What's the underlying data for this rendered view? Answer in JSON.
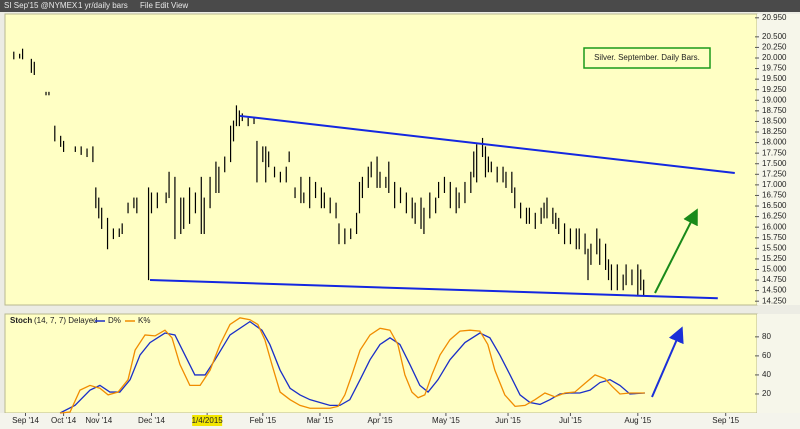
{
  "toolbar": {
    "symbol": "SI Sep'15 @NYMEX",
    "period": "1 yr/daily bars",
    "menu": [
      "File",
      "Edit",
      "View"
    ]
  },
  "chart_data": [
    {
      "type": "hilo",
      "annotation": "Silver. September. Daily Bars.",
      "color": "#000000",
      "xlim": [
        0,
        256
      ],
      "ylim": [
        14.16,
        21.04
      ],
      "xticks": [
        {
          "value": 7,
          "label": "Sep '14"
        },
        {
          "value": 20,
          "label": "Oct '14"
        },
        {
          "value": 32,
          "label": "Nov '14"
        },
        {
          "value": 50,
          "label": "Dec '14"
        },
        {
          "value": 69,
          "label": "1/4/2015",
          "highlight": "#f2e600"
        },
        {
          "value": 88,
          "label": "Feb '15"
        },
        {
          "value": 107.5,
          "label": "Mar '15"
        },
        {
          "value": 128,
          "label": "Apr '15"
        },
        {
          "value": 150.5,
          "label": "May '15"
        },
        {
          "value": 171.7,
          "label": "Jun '15"
        },
        {
          "value": 193,
          "label": "Jul '15"
        },
        {
          "value": 216,
          "label": "Aug '15"
        },
        {
          "value": 246,
          "label": "Sep '15"
        }
      ],
      "yticks": [
        {
          "value": 20.95,
          "label": "20.950"
        },
        {
          "value": 20.5,
          "label": "20.500"
        },
        {
          "value": 20.25,
          "label": "20.250"
        },
        {
          "value": 20,
          "label": "20.000"
        },
        {
          "value": 19.75,
          "label": "19.750"
        },
        {
          "value": 19.5,
          "label": "19.500"
        },
        {
          "value": 19.25,
          "label": "19.250"
        },
        {
          "value": 19,
          "label": "19.000"
        },
        {
          "value": 18.75,
          "label": "18.750"
        },
        {
          "value": 18.5,
          "label": "18.500"
        },
        {
          "value": 18.25,
          "label": "18.250"
        },
        {
          "value": 18,
          "label": "18.000"
        },
        {
          "value": 17.75,
          "label": "17.750"
        },
        {
          "value": 17.5,
          "label": "17.500"
        },
        {
          "value": 17.25,
          "label": "17.250"
        },
        {
          "value": 17,
          "label": "17.000"
        },
        {
          "value": 16.75,
          "label": "16.750"
        },
        {
          "value": 16.5,
          "label": "16.500"
        },
        {
          "value": 16.25,
          "label": "16.250"
        },
        {
          "value": 16,
          "label": "16.000"
        },
        {
          "value": 15.75,
          "label": "15.750"
        },
        {
          "value": 15.5,
          "label": "15.500"
        },
        {
          "value": 15.25,
          "label": "15.250"
        },
        {
          "value": 15,
          "label": "15.000"
        },
        {
          "value": 14.75,
          "label": "14.750"
        },
        {
          "value": 14.5,
          "label": "14.500"
        },
        {
          "value": 14.25,
          "label": "14.250"
        }
      ],
      "x": [
        3,
        5,
        6,
        9,
        10,
        14,
        15,
        17,
        19,
        20,
        24,
        26,
        28,
        30,
        31,
        32,
        33,
        35,
        37,
        39,
        40,
        42,
        44,
        45,
        49,
        50,
        52,
        55,
        56,
        58,
        60,
        61,
        63,
        65,
        67,
        68,
        70,
        72,
        73,
        75,
        77,
        78,
        79,
        80,
        81,
        83,
        85,
        86,
        88,
        89,
        90,
        92,
        94,
        96,
        97,
        99,
        101,
        102,
        104,
        106,
        108,
        109,
        111,
        113,
        114,
        116,
        118,
        120,
        121,
        122,
        124,
        125,
        127,
        128,
        130,
        131,
        133,
        135,
        137,
        139,
        140,
        142,
        143,
        145,
        147,
        148,
        150,
        152,
        154,
        155,
        157,
        159,
        160,
        161,
        163,
        164,
        165,
        166,
        168,
        170,
        171,
        173,
        174,
        176,
        178,
        179,
        181,
        183,
        184,
        185,
        187,
        188,
        189,
        191,
        193,
        195,
        196,
        198,
        199,
        200,
        202,
        203,
        205,
        206,
        207,
        209,
        211,
        212,
        214,
        216,
        217,
        218
      ],
      "high": [
        20.15,
        20.1,
        20.22,
        19.98,
        19.91,
        19.2,
        19.2,
        18.4,
        18.16,
        18.04,
        17.91,
        17.91,
        17.86,
        17.91,
        16.94,
        16.7,
        16.46,
        16.22,
        15.97,
        15.97,
        16.09,
        16.58,
        16.7,
        16.7,
        16.94,
        16.82,
        16.82,
        16.82,
        17.31,
        17.19,
        16.7,
        16.7,
        16.94,
        16.82,
        17.19,
        16.7,
        17.19,
        17.55,
        17.43,
        17.67,
        18.4,
        18.52,
        18.88,
        18.76,
        18.69,
        18.59,
        18.59,
        18.04,
        17.91,
        17.91,
        17.79,
        17.43,
        17.31,
        17.43,
        17.79,
        16.94,
        17.19,
        16.82,
        17.19,
        17.07,
        16.94,
        16.82,
        16.7,
        16.58,
        16.09,
        15.97,
        15.97,
        16.34,
        17.07,
        17.19,
        17.43,
        17.55,
        17.67,
        17.31,
        17.19,
        17.55,
        17.07,
        16.94,
        16.82,
        16.7,
        16.58,
        16.7,
        16.46,
        16.82,
        16.7,
        17.07,
        17.19,
        17.07,
        16.94,
        16.82,
        17.07,
        17.31,
        17.79,
        17.96,
        18.11,
        17.91,
        17.67,
        17.55,
        17.43,
        17.43,
        17.31,
        17.31,
        16.94,
        16.58,
        16.46,
        16.46,
        16.34,
        16.46,
        16.58,
        16.7,
        16.46,
        16.34,
        16.22,
        16.09,
        15.97,
        15.97,
        15.97,
        15.85,
        15.49,
        15.61,
        15.97,
        15.73,
        15.61,
        15.24,
        15.12,
        15.12,
        14.88,
        15.12,
        15.0,
        15.12,
        15.0,
        14.76
      ],
      "low": [
        19.98,
        20.0,
        19.98,
        19.66,
        19.61,
        19.13,
        19.13,
        18.04,
        17.91,
        17.79,
        17.79,
        17.72,
        17.67,
        17.55,
        16.46,
        16.22,
        15.97,
        15.49,
        15.73,
        15.78,
        15.85,
        16.34,
        16.46,
        16.34,
        14.76,
        16.34,
        16.46,
        16.58,
        16.7,
        15.73,
        15.85,
        15.97,
        16.09,
        16.34,
        15.85,
        15.85,
        16.46,
        16.82,
        16.82,
        17.31,
        17.55,
        18.04,
        18.4,
        18.4,
        18.52,
        18.4,
        18.45,
        17.07,
        17.55,
        17.07,
        17.43,
        17.19,
        17.07,
        17.07,
        17.55,
        16.7,
        16.58,
        16.58,
        16.46,
        16.7,
        16.46,
        16.46,
        16.34,
        16.22,
        15.61,
        15.61,
        15.73,
        15.85,
        16.34,
        16.7,
        16.94,
        17.19,
        16.94,
        16.94,
        16.94,
        16.82,
        16.46,
        16.58,
        16.34,
        16.22,
        16.09,
        15.97,
        15.85,
        16.22,
        16.34,
        16.7,
        16.82,
        16.46,
        16.34,
        16.46,
        16.58,
        16.82,
        17.19,
        17.07,
        17.67,
        17.19,
        17.31,
        17.31,
        17.07,
        17.07,
        16.94,
        16.82,
        16.46,
        16.22,
        16.09,
        16.09,
        15.97,
        16.09,
        16.22,
        16.22,
        16.09,
        15.97,
        15.85,
        15.61,
        15.61,
        15.49,
        15.49,
        15.37,
        14.76,
        15.12,
        15.37,
        15.12,
        15.0,
        14.76,
        14.52,
        14.52,
        14.52,
        14.64,
        14.64,
        14.39,
        14.52,
        14.39
      ],
      "trendlines": [
        {
          "color": "#1428e0",
          "x": [
            80.2,
            249.1
          ],
          "y": [
            18.63,
            17.28
          ]
        },
        {
          "color": "#1428e0",
          "x": [
            49.5,
            243.3
          ],
          "y": [
            14.75,
            14.32
          ]
        }
      ]
    },
    {
      "type": "line",
      "title": "Stoch",
      "subtitle": "(14, 7, 7) Delayed",
      "xlim": [
        0,
        256
      ],
      "ylim": [
        0,
        104
      ],
      "yticks": [
        20,
        40,
        60,
        80
      ],
      "series": [
        {
          "name": "D%",
          "color": "#1a2fc8",
          "x": [
            18.8,
            23.9,
            29,
            32.4,
            35.8,
            39.2,
            42.7,
            46.1,
            49.5,
            54.6,
            58,
            61.4,
            64.8,
            68.3,
            71.7,
            76.8,
            83.6,
            87.7,
            90.4,
            93.9,
            97.3,
            100.7,
            104.1,
            107.5,
            110.9,
            114.3,
            117.7,
            121.2,
            124.6,
            128,
            131.4,
            134.8,
            138.2,
            141.6,
            144.4,
            147.8,
            151.9,
            157,
            162.1,
            165.5,
            168.9,
            172.4,
            175.8,
            179.2,
            182.6,
            186,
            189.4,
            192.8,
            196.2,
            199.7,
            203.1,
            206.5,
            209.9,
            213.3,
            218.4
          ],
          "values": [
            0,
            8,
            24,
            29,
            22,
            22,
            35,
            61,
            74,
            84,
            82,
            61,
            40,
            40,
            56,
            82,
            96,
            87,
            72,
            45,
            26,
            19,
            14,
            11,
            8,
            8,
            14,
            35,
            56,
            72,
            79,
            72,
            51,
            29,
            22,
            35,
            56,
            74,
            84,
            79,
            61,
            40,
            19,
            11,
            9,
            14,
            20,
            21,
            21,
            24,
            32,
            35,
            29,
            20,
            21
          ]
        },
        {
          "name": "K%",
          "color": "#f08c00",
          "x": [
            18.8,
            22.2,
            25.6,
            29,
            32.4,
            35.2,
            38.6,
            42,
            44.4,
            47.8,
            51.2,
            54.6,
            57,
            59.7,
            63.1,
            66.6,
            70,
            73.4,
            76.8,
            80.2,
            83.6,
            86.3,
            88.7,
            91.1,
            93.9,
            97.3,
            100.7,
            104.1,
            107.5,
            110.9,
            113.7,
            116,
            118.4,
            121.2,
            124.6,
            128,
            131.4,
            134.1,
            136.5,
            138.9,
            141,
            143.3,
            145.7,
            148.5,
            151.9,
            155.3,
            158.7,
            162.1,
            164.8,
            167.2,
            170.6,
            174.1,
            177.5,
            180.9,
            184.3,
            187.7,
            191.1,
            194.5,
            197.9,
            201.4,
            204.8,
            207.2,
            209.9,
            213.3,
            218.4
          ],
          "values": [
            0,
            1,
            24,
            29,
            26,
            19,
            22,
            35,
            66,
            82,
            81,
            87,
            79,
            51,
            29,
            29,
            45,
            72,
            93,
            100,
            98,
            93,
            77,
            51,
            22,
            14,
            8,
            5,
            5,
            5,
            7,
            19,
            40,
            66,
            82,
            89,
            87,
            72,
            40,
            22,
            16,
            19,
            40,
            61,
            77,
            86,
            87,
            86,
            72,
            45,
            19,
            7,
            8,
            14,
            21,
            17,
            21,
            22,
            31,
            40,
            36,
            28,
            20,
            21,
            21
          ]
        }
      ]
    }
  ]
}
